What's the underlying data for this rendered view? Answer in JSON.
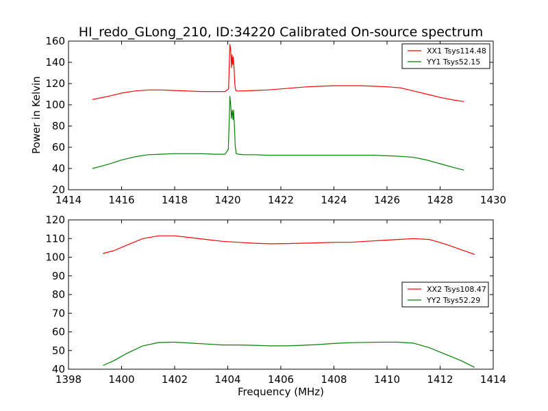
{
  "figure": {
    "title": "HI_redo_GLong_210, ID:34220 Calibrated On-source spectrum",
    "ylabel": "Power in Kelvin",
    "xlabel": "Frequency (MHz)"
  },
  "chart_data": [
    {
      "type": "line",
      "title": "HI_redo_GLong_210, ID:34220 Calibrated On-source spectrum",
      "xlabel": "",
      "ylabel": "Power in Kelvin",
      "xlim": [
        1414,
        1430
      ],
      "ylim": [
        20,
        160
      ],
      "xticks": [
        1414,
        1416,
        1418,
        1420,
        1422,
        1424,
        1426,
        1428,
        1430
      ],
      "yticks": [
        20,
        40,
        60,
        80,
        100,
        120,
        140,
        160
      ],
      "grid": false,
      "legend": "top-right",
      "series": [
        {
          "name": "XX1 Tsys114.48",
          "color": "#ff0000",
          "x": [
            1414.9,
            1415.2,
            1415.5,
            1416.0,
            1416.5,
            1417.0,
            1417.5,
            1418.0,
            1418.5,
            1419.0,
            1419.5,
            1419.9,
            1420.03,
            1420.06,
            1420.08,
            1420.11,
            1420.14,
            1420.16,
            1420.19,
            1420.21,
            1420.24,
            1420.27,
            1420.3,
            1420.36,
            1420.5,
            1421.0,
            1421.5,
            1422.0,
            1422.5,
            1423.0,
            1423.5,
            1424.0,
            1424.5,
            1425.0,
            1425.5,
            1426.0,
            1426.5,
            1427.0,
            1427.5,
            1428.0,
            1428.5,
            1428.9
          ],
          "values": [
            105,
            106.5,
            108,
            111,
            113,
            114,
            114,
            113.5,
            113,
            112.5,
            112.5,
            112.5,
            115,
            140,
            157,
            152,
            135,
            147,
            138,
            145,
            133,
            118,
            113.5,
            113,
            113,
            113.5,
            114,
            115,
            116,
            117,
            117.5,
            118,
            118,
            118,
            117.5,
            117,
            116,
            113,
            110,
            107,
            104.5,
            103
          ]
        },
        {
          "name": "YY1 Tsys52.15",
          "color": "#008000",
          "x": [
            1414.9,
            1415.2,
            1415.5,
            1416.0,
            1416.5,
            1417.0,
            1417.5,
            1418.0,
            1418.5,
            1419.0,
            1419.5,
            1419.9,
            1420.02,
            1420.05,
            1420.08,
            1420.11,
            1420.14,
            1420.17,
            1420.2,
            1420.22,
            1420.25,
            1420.28,
            1420.32,
            1420.4,
            1420.6,
            1421.0,
            1421.5,
            1422.0,
            1422.5,
            1423.0,
            1423.5,
            1424.0,
            1424.5,
            1425.0,
            1425.5,
            1426.0,
            1426.5,
            1427.0,
            1427.5,
            1428.0,
            1428.5,
            1428.9
          ],
          "values": [
            40,
            42,
            44,
            48,
            51,
            53,
            53.5,
            54,
            54,
            54,
            53.5,
            53.5,
            58,
            80,
            108,
            100,
            87,
            95,
            86,
            95,
            80,
            62,
            54,
            53.5,
            53,
            53,
            52.5,
            52.5,
            52.5,
            52.5,
            52.5,
            52.5,
            52.5,
            52.5,
            52.5,
            52,
            51.5,
            50.5,
            48,
            44.5,
            41,
            38.5
          ]
        }
      ]
    },
    {
      "type": "line",
      "title": "",
      "xlabel": "Frequency (MHz)",
      "ylabel": "",
      "xlim": [
        1398,
        1414
      ],
      "ylim": [
        40,
        120
      ],
      "xticks": [
        1398,
        1400,
        1402,
        1404,
        1406,
        1408,
        1410,
        1412,
        1414
      ],
      "yticks": [
        40,
        50,
        60,
        70,
        80,
        90,
        100,
        110,
        120
      ],
      "grid": false,
      "legend": "center-right",
      "series": [
        {
          "name": "XX2 Tsys108.47",
          "color": "#ff0000",
          "x": [
            1399.3,
            1399.7,
            1400.2,
            1400.8,
            1401.4,
            1402.0,
            1402.6,
            1403.2,
            1403.8,
            1404.4,
            1405.0,
            1405.6,
            1406.2,
            1406.8,
            1407.4,
            1408.0,
            1408.6,
            1409.2,
            1409.8,
            1410.4,
            1411.0,
            1411.6,
            1412.2,
            1412.8,
            1413.3
          ],
          "values": [
            102,
            103.5,
            106.5,
            110,
            111.5,
            111.5,
            110.5,
            109.5,
            108.5,
            108,
            107.5,
            107.2,
            107.3,
            107.5,
            107.7,
            108,
            108,
            108.5,
            109,
            109.5,
            110,
            109.5,
            107,
            104,
            101.5
          ]
        },
        {
          "name": "YY2 Tsys52.29",
          "color": "#008000",
          "x": [
            1399.3,
            1399.7,
            1400.2,
            1400.8,
            1401.4,
            1402.0,
            1402.6,
            1403.2,
            1403.8,
            1404.4,
            1405.0,
            1405.6,
            1406.2,
            1406.8,
            1407.4,
            1408.0,
            1408.6,
            1409.2,
            1409.8,
            1410.4,
            1411.0,
            1411.6,
            1412.2,
            1412.8,
            1413.3
          ],
          "values": [
            42,
            44.5,
            48.5,
            52.5,
            54.3,
            54.5,
            54,
            53.5,
            53,
            53,
            52.8,
            52.5,
            52.5,
            52.8,
            53.2,
            53.8,
            54.2,
            54.4,
            54.5,
            54.5,
            54,
            51.5,
            48,
            44.5,
            41
          ]
        }
      ]
    }
  ]
}
